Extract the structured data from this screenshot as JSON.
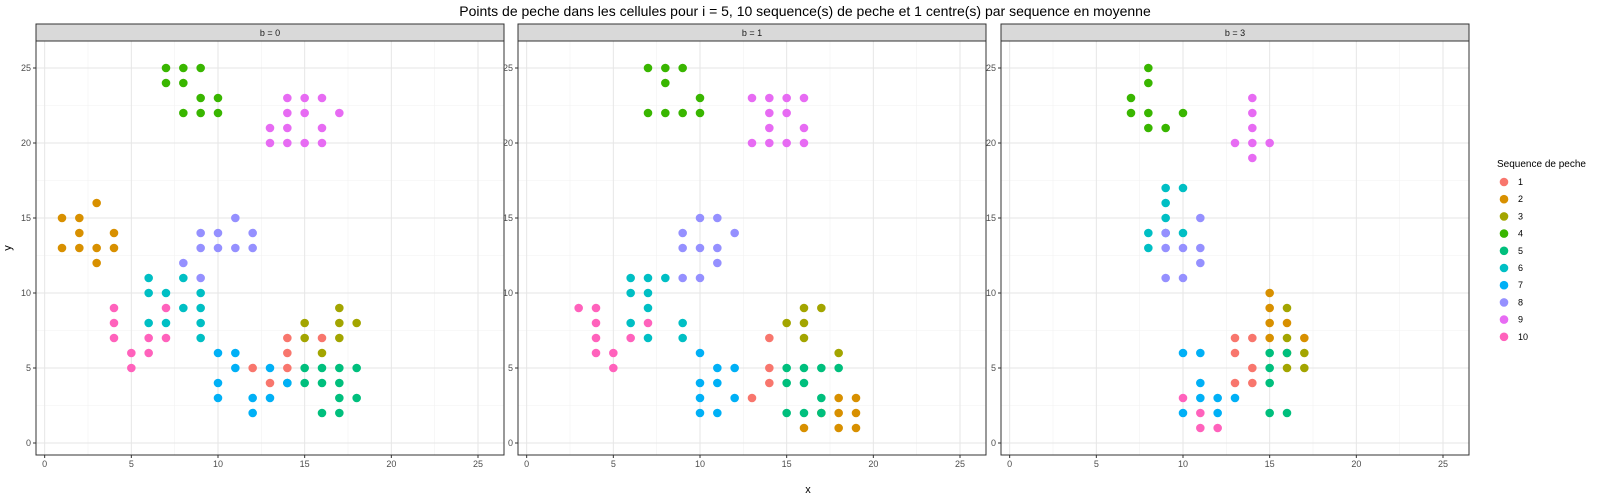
{
  "chart_data": {
    "type": "scatter",
    "title": "Points de peche dans les cellules pour i = 5, 10 sequence(s) de peche et 1 centre(s) par sequence en moyenne",
    "xlabel": "x",
    "ylabel": "y",
    "xlim": [
      -0.5,
      26.5
    ],
    "ylim": [
      -0.8,
      26.8
    ],
    "x_ticks": [
      0,
      5,
      10,
      15,
      20,
      25
    ],
    "y_ticks": [
      0,
      5,
      10,
      15,
      20,
      25
    ],
    "grid": true,
    "legend_position": "right",
    "legend_title": "Sequence de peche",
    "series": [
      {
        "name": "1",
        "color": "#F8766D"
      },
      {
        "name": "2",
        "color": "#D89000"
      },
      {
        "name": "3",
        "color": "#A3A500"
      },
      {
        "name": "4",
        "color": "#39B600"
      },
      {
        "name": "5",
        "color": "#00BF7D"
      },
      {
        "name": "6",
        "color": "#00BFC4"
      },
      {
        "name": "7",
        "color": "#00B0F6"
      },
      {
        "name": "8",
        "color": "#9590FF"
      },
      {
        "name": "9",
        "color": "#E76BF3"
      },
      {
        "name": "10",
        "color": "#FF62BC"
      }
    ],
    "panels": [
      {
        "label": "b = 0",
        "points": {
          "1": [
            [
              12,
              5
            ],
            [
              13,
              4
            ],
            [
              14,
              5
            ],
            [
              14,
              6
            ],
            [
              14,
              7
            ],
            [
              16,
              7
            ]
          ],
          "2": [
            [
              1,
              15
            ],
            [
              2,
              15
            ],
            [
              2,
              14
            ],
            [
              1,
              13
            ],
            [
              2,
              13
            ],
            [
              3,
              13
            ],
            [
              3,
              16
            ],
            [
              3,
              12
            ],
            [
              4,
              14
            ],
            [
              4,
              13
            ]
          ],
          "3": [
            [
              15,
              8
            ],
            [
              15,
              7
            ],
            [
              16,
              6
            ],
            [
              17,
              9
            ],
            [
              17,
              8
            ],
            [
              17,
              7
            ],
            [
              18,
              8
            ]
          ],
          "4": [
            [
              7,
              25
            ],
            [
              8,
              25
            ],
            [
              9,
              25
            ],
            [
              7,
              24
            ],
            [
              8,
              24
            ],
            [
              9,
              23
            ],
            [
              10,
              23
            ],
            [
              8,
              22
            ],
            [
              9,
              22
            ],
            [
              10,
              22
            ]
          ],
          "5": [
            [
              14,
              4
            ],
            [
              15,
              5
            ],
            [
              15,
              4
            ],
            [
              16,
              5
            ],
            [
              16,
              4
            ],
            [
              17,
              5
            ],
            [
              17,
              4
            ],
            [
              18,
              5
            ],
            [
              16,
              2
            ],
            [
              17,
              2
            ],
            [
              17,
              3
            ],
            [
              18,
              3
            ]
          ],
          "6": [
            [
              6,
              11
            ],
            [
              6,
              10
            ],
            [
              6,
              8
            ],
            [
              7,
              10
            ],
            [
              7,
              8
            ],
            [
              8,
              11
            ],
            [
              8,
              9
            ],
            [
              9,
              10
            ],
            [
              9,
              9
            ],
            [
              9,
              8
            ],
            [
              9,
              7
            ]
          ],
          "7": [
            [
              10,
              6
            ],
            [
              11,
              6
            ],
            [
              10,
              4
            ],
            [
              10,
              3
            ],
            [
              11,
              5
            ],
            [
              12,
              3
            ],
            [
              12,
              2
            ],
            [
              13,
              5
            ],
            [
              13,
              3
            ],
            [
              14,
              4
            ]
          ],
          "8": [
            [
              8,
              12
            ],
            [
              9,
              14
            ],
            [
              9,
              13
            ],
            [
              9,
              11
            ],
            [
              10,
              14
            ],
            [
              10,
              13
            ],
            [
              11,
              15
            ],
            [
              11,
              13
            ],
            [
              12,
              14
            ],
            [
              12,
              13
            ]
          ],
          "9": [
            [
              13,
              21
            ],
            [
              13,
              20
            ],
            [
              14,
              23
            ],
            [
              14,
              22
            ],
            [
              14,
              21
            ],
            [
              14,
              20
            ],
            [
              15,
              23
            ],
            [
              15,
              22
            ],
            [
              15,
              20
            ],
            [
              16,
              23
            ],
            [
              16,
              21
            ],
            [
              16,
              20
            ],
            [
              17,
              22
            ]
          ],
          "10": [
            [
              4,
              9
            ],
            [
              4,
              8
            ],
            [
              4,
              7
            ],
            [
              5,
              6
            ],
            [
              5,
              5
            ],
            [
              6,
              7
            ],
            [
              6,
              6
            ],
            [
              7,
              9
            ],
            [
              7,
              7
            ]
          ]
        }
      },
      {
        "label": "b = 1",
        "points": {
          "1": [
            [
              13,
              3
            ],
            [
              14,
              7
            ],
            [
              14,
              5
            ],
            [
              14,
              4
            ]
          ],
          "2": [
            [
              16,
              1
            ],
            [
              17,
              2
            ],
            [
              18,
              3
            ],
            [
              18,
              2
            ],
            [
              18,
              1
            ],
            [
              19,
              3
            ],
            [
              19,
              2
            ],
            [
              19,
              1
            ]
          ],
          "3": [
            [
              15,
              8
            ],
            [
              16,
              9
            ],
            [
              16,
              8
            ],
            [
              16,
              7
            ],
            [
              17,
              9
            ],
            [
              18,
              6
            ]
          ],
          "4": [
            [
              7,
              25
            ],
            [
              8,
              25
            ],
            [
              9,
              25
            ],
            [
              8,
              24
            ],
            [
              7,
              22
            ],
            [
              8,
              22
            ],
            [
              9,
              22
            ],
            [
              10,
              22
            ],
            [
              10,
              23
            ]
          ],
          "5": [
            [
              15,
              5
            ],
            [
              15,
              4
            ],
            [
              15,
              2
            ],
            [
              16,
              5
            ],
            [
              16,
              4
            ],
            [
              16,
              2
            ],
            [
              17,
              5
            ],
            [
              17,
              3
            ],
            [
              18,
              5
            ],
            [
              17,
              2
            ]
          ],
          "6": [
            [
              6,
              11
            ],
            [
              6,
              10
            ],
            [
              6,
              8
            ],
            [
              7,
              11
            ],
            [
              7,
              10
            ],
            [
              7,
              9
            ],
            [
              7,
              7
            ],
            [
              8,
              11
            ],
            [
              9,
              8
            ],
            [
              9,
              7
            ]
          ],
          "7": [
            [
              10,
              6
            ],
            [
              10,
              4
            ],
            [
              10,
              3
            ],
            [
              10,
              2
            ],
            [
              11,
              5
            ],
            [
              11,
              4
            ],
            [
              11,
              2
            ],
            [
              12,
              5
            ],
            [
              12,
              3
            ]
          ],
          "8": [
            [
              9,
              14
            ],
            [
              9,
              13
            ],
            [
              9,
              11
            ],
            [
              10,
              15
            ],
            [
              10,
              13
            ],
            [
              10,
              11
            ],
            [
              11,
              15
            ],
            [
              11,
              13
            ],
            [
              11,
              12
            ],
            [
              12,
              14
            ]
          ],
          "9": [
            [
              13,
              23
            ],
            [
              13,
              20
            ],
            [
              14,
              23
            ],
            [
              14,
              22
            ],
            [
              14,
              21
            ],
            [
              14,
              20
            ],
            [
              15,
              23
            ],
            [
              15,
              22
            ],
            [
              15,
              20
            ],
            [
              16,
              23
            ],
            [
              16,
              21
            ],
            [
              16,
              20
            ]
          ],
          "10": [
            [
              3,
              9
            ],
            [
              4,
              9
            ],
            [
              4,
              8
            ],
            [
              4,
              7
            ],
            [
              4,
              6
            ],
            [
              5,
              6
            ],
            [
              5,
              5
            ],
            [
              6,
              7
            ],
            [
              7,
              8
            ]
          ]
        }
      },
      {
        "label": "b = 3",
        "points": {
          "1": [
            [
              13,
              7
            ],
            [
              13,
              6
            ],
            [
              13,
              4
            ],
            [
              14,
              7
            ],
            [
              14,
              5
            ],
            [
              14,
              4
            ]
          ],
          "2": [
            [
              15,
              10
            ],
            [
              15,
              9
            ],
            [
              15,
              8
            ],
            [
              15,
              7
            ],
            [
              16,
              8
            ],
            [
              17,
              7
            ]
          ],
          "3": [
            [
              16,
              9
            ],
            [
              16,
              7
            ],
            [
              16,
              6
            ],
            [
              16,
              5
            ],
            [
              17,
              6
            ],
            [
              17,
              5
            ]
          ],
          "4": [
            [
              7,
              23
            ],
            [
              7,
              22
            ],
            [
              8,
              25
            ],
            [
              8,
              24
            ],
            [
              8,
              22
            ],
            [
              8,
              21
            ],
            [
              9,
              21
            ],
            [
              10,
              22
            ]
          ],
          "5": [
            [
              15,
              6
            ],
            [
              15,
              5
            ],
            [
              15,
              4
            ],
            [
              15,
              2
            ],
            [
              16,
              6
            ],
            [
              16,
              2
            ]
          ],
          "6": [
            [
              8,
              14
            ],
            [
              8,
              13
            ],
            [
              9,
              17
            ],
            [
              9,
              16
            ],
            [
              9,
              15
            ],
            [
              9,
              14
            ],
            [
              10,
              17
            ],
            [
              10,
              14
            ]
          ],
          "7": [
            [
              10,
              6
            ],
            [
              11,
              6
            ],
            [
              10,
              2
            ],
            [
              11,
              4
            ],
            [
              11,
              3
            ],
            [
              12,
              3
            ],
            [
              12,
              2
            ],
            [
              13,
              3
            ]
          ],
          "8": [
            [
              9,
              14
            ],
            [
              9,
              13
            ],
            [
              9,
              11
            ],
            [
              10,
              13
            ],
            [
              10,
              11
            ],
            [
              11,
              15
            ],
            [
              11,
              13
            ],
            [
              11,
              12
            ]
          ],
          "9": [
            [
              13,
              20
            ],
            [
              14,
              23
            ],
            [
              14,
              22
            ],
            [
              14,
              21
            ],
            [
              14,
              20
            ],
            [
              14,
              19
            ],
            [
              15,
              20
            ]
          ],
          "10": [
            [
              10,
              3
            ],
            [
              11,
              2
            ],
            [
              11,
              1
            ],
            [
              12,
              1
            ]
          ]
        }
      }
    ]
  }
}
